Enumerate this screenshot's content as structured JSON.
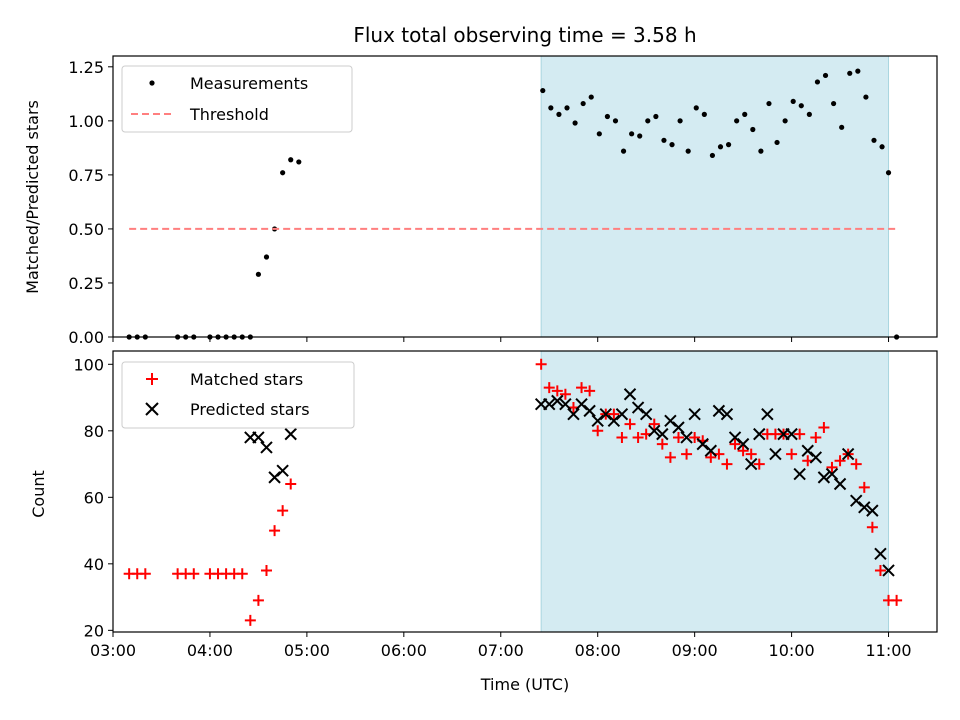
{
  "chart_data": [
    {
      "type": "scatter",
      "title": "Flux total observing time = 3.58 h",
      "xlabel": "",
      "ylabel": "Matched/Predicted stars",
      "xlim": [
        "03:00",
        "11:30"
      ],
      "ylim": [
        0,
        1.3
      ],
      "yticks": [
        "0.00",
        "0.25",
        "0.50",
        "0.75",
        "1.00",
        "1.25"
      ],
      "shaded_interval": [
        "07:25",
        "11:00"
      ],
      "shade_color": "#d4ebf2",
      "legend_position": "top-left",
      "series": [
        {
          "name": "Measurements",
          "marker": "dot",
          "color": "#000000",
          "points": [
            [
              "03:10",
              0
            ],
            [
              "03:15",
              0
            ],
            [
              "03:20",
              0
            ],
            [
              "03:40",
              0
            ],
            [
              "03:45",
              0
            ],
            [
              "03:50",
              0
            ],
            [
              "04:00",
              0
            ],
            [
              "04:05",
              0
            ],
            [
              "04:10",
              0
            ],
            [
              "04:15",
              0
            ],
            [
              "04:20",
              0
            ],
            [
              "04:25",
              0
            ],
            [
              "04:30",
              0.29
            ],
            [
              "04:35",
              0.37
            ],
            [
              "04:40",
              0.5
            ],
            [
              "04:45",
              0.76
            ],
            [
              "04:50",
              0.82
            ],
            [
              "04:55",
              0.81
            ],
            [
              "07:26",
              1.14
            ],
            [
              "07:31",
              1.06
            ],
            [
              "07:36",
              1.03
            ],
            [
              "07:41",
              1.06
            ],
            [
              "07:46",
              0.99
            ],
            [
              "07:51",
              1.08
            ],
            [
              "07:56",
              1.11
            ],
            [
              "08:01",
              0.94
            ],
            [
              "08:06",
              1.02
            ],
            [
              "08:11",
              1.0
            ],
            [
              "08:16",
              0.86
            ],
            [
              "08:21",
              0.94
            ],
            [
              "08:26",
              0.93
            ],
            [
              "08:31",
              1.0
            ],
            [
              "08:36",
              1.02
            ],
            [
              "08:41",
              0.91
            ],
            [
              "08:46",
              0.89
            ],
            [
              "08:51",
              1.0
            ],
            [
              "08:56",
              0.86
            ],
            [
              "09:01",
              1.06
            ],
            [
              "09:06",
              1.03
            ],
            [
              "09:11",
              0.84
            ],
            [
              "09:16",
              0.88
            ],
            [
              "09:21",
              0.89
            ],
            [
              "09:26",
              1.0
            ],
            [
              "09:31",
              1.03
            ],
            [
              "09:36",
              0.96
            ],
            [
              "09:41",
              0.86
            ],
            [
              "09:46",
              1.08
            ],
            [
              "09:51",
              0.9
            ],
            [
              "09:56",
              1.0
            ],
            [
              "10:01",
              1.09
            ],
            [
              "10:06",
              1.07
            ],
            [
              "10:11",
              1.03
            ],
            [
              "10:16",
              1.18
            ],
            [
              "10:21",
              1.21
            ],
            [
              "10:26",
              1.08
            ],
            [
              "10:31",
              0.97
            ],
            [
              "10:36",
              1.22
            ],
            [
              "10:41",
              1.23
            ],
            [
              "10:46",
              1.11
            ],
            [
              "10:51",
              0.91
            ],
            [
              "10:56",
              0.88
            ],
            [
              "11:00",
              0.76
            ],
            [
              "11:05",
              0
            ]
          ]
        },
        {
          "name": "Threshold",
          "marker": "dashed-line",
          "color": "#ff7f7f",
          "points": [
            [
              "03:10",
              0.5
            ],
            [
              "11:05",
              0.5
            ]
          ]
        }
      ]
    },
    {
      "type": "scatter",
      "title": "",
      "xlabel": "Time (UTC)",
      "ylabel": "Count",
      "xlim": [
        "03:00",
        "11:30"
      ],
      "ylim": [
        19.5,
        104
      ],
      "yticks": [
        "20",
        "40",
        "60",
        "80",
        "100"
      ],
      "xticks": [
        "03:00",
        "04:00",
        "05:00",
        "06:00",
        "07:00",
        "08:00",
        "09:00",
        "10:00",
        "11:00"
      ],
      "shaded_interval": [
        "07:25",
        "11:00"
      ],
      "shade_color": "#d4ebf2",
      "legend_position": "top-left",
      "series": [
        {
          "name": "Matched stars",
          "marker": "plus",
          "color": "#ff0000",
          "points": [
            [
              "03:10",
              37
            ],
            [
              "03:15",
              37
            ],
            [
              "03:20",
              37
            ],
            [
              "03:40",
              37
            ],
            [
              "03:45",
              37
            ],
            [
              "03:50",
              37
            ],
            [
              "04:00",
              37
            ],
            [
              "04:05",
              37
            ],
            [
              "04:10",
              37
            ],
            [
              "04:15",
              37
            ],
            [
              "04:20",
              37
            ],
            [
              "04:25",
              23
            ],
            [
              "04:30",
              29
            ],
            [
              "04:35",
              38
            ],
            [
              "04:40",
              50
            ],
            [
              "04:45",
              56
            ],
            [
              "04:50",
              64
            ],
            [
              "07:25",
              100
            ],
            [
              "07:30",
              93
            ],
            [
              "07:35",
              92
            ],
            [
              "07:40",
              91
            ],
            [
              "07:45",
              87
            ],
            [
              "07:50",
              93
            ],
            [
              "07:55",
              92
            ],
            [
              "08:00",
              80
            ],
            [
              "08:05",
              85
            ],
            [
              "08:10",
              85
            ],
            [
              "08:15",
              78
            ],
            [
              "08:20",
              82
            ],
            [
              "08:25",
              78
            ],
            [
              "08:30",
              79
            ],
            [
              "08:35",
              82
            ],
            [
              "08:40",
              76
            ],
            [
              "08:45",
              72
            ],
            [
              "08:50",
              78
            ],
            [
              "08:55",
              73
            ],
            [
              "09:00",
              78
            ],
            [
              "09:05",
              77
            ],
            [
              "09:10",
              72
            ],
            [
              "09:15",
              73
            ],
            [
              "09:20",
              70
            ],
            [
              "09:25",
              76
            ],
            [
              "09:30",
              74
            ],
            [
              "09:35",
              73
            ],
            [
              "09:40",
              70
            ],
            [
              "09:45",
              79
            ],
            [
              "09:50",
              79
            ],
            [
              "09:55",
              79
            ],
            [
              "10:00",
              73
            ],
            [
              "10:05",
              79
            ],
            [
              "10:10",
              71
            ],
            [
              "10:15",
              78
            ],
            [
              "10:20",
              81
            ],
            [
              "10:25",
              69
            ],
            [
              "10:30",
              71
            ],
            [
              "10:35",
              73
            ],
            [
              "10:40",
              70
            ],
            [
              "10:45",
              63
            ],
            [
              "10:50",
              51
            ],
            [
              "10:55",
              38
            ],
            [
              "11:00",
              29
            ],
            [
              "11:05",
              29
            ]
          ]
        },
        {
          "name": "Predicted stars",
          "marker": "x",
          "color": "#000000",
          "points": [
            [
              "04:25",
              78
            ],
            [
              "04:30",
              78
            ],
            [
              "04:35",
              75
            ],
            [
              "04:40",
              66
            ],
            [
              "04:45",
              68
            ],
            [
              "04:50",
              79
            ],
            [
              "07:25",
              88
            ],
            [
              "07:30",
              88
            ],
            [
              "07:35",
              89
            ],
            [
              "07:40",
              88
            ],
            [
              "07:45",
              85
            ],
            [
              "07:50",
              88
            ],
            [
              "07:55",
              86
            ],
            [
              "08:00",
              83
            ],
            [
              "08:05",
              85
            ],
            [
              "08:10",
              83
            ],
            [
              "08:15",
              85
            ],
            [
              "08:20",
              91
            ],
            [
              "08:25",
              87
            ],
            [
              "08:30",
              85
            ],
            [
              "08:35",
              80
            ],
            [
              "08:40",
              79
            ],
            [
              "08:45",
              83
            ],
            [
              "08:50",
              81
            ],
            [
              "08:55",
              78
            ],
            [
              "09:00",
              85
            ],
            [
              "09:05",
              76
            ],
            [
              "09:10",
              74
            ],
            [
              "09:15",
              86
            ],
            [
              "09:20",
              85
            ],
            [
              "09:25",
              78
            ],
            [
              "09:30",
              76
            ],
            [
              "09:35",
              70
            ],
            [
              "09:40",
              79
            ],
            [
              "09:45",
              85
            ],
            [
              "09:50",
              73
            ],
            [
              "09:55",
              79
            ],
            [
              "10:00",
              79
            ],
            [
              "10:05",
              67
            ],
            [
              "10:10",
              74
            ],
            [
              "10:15",
              72
            ],
            [
              "10:20",
              66
            ],
            [
              "10:25",
              67
            ],
            [
              "10:30",
              64
            ],
            [
              "10:35",
              73
            ],
            [
              "10:40",
              59
            ],
            [
              "10:45",
              57
            ],
            [
              "10:50",
              56
            ],
            [
              "10:55",
              43
            ],
            [
              "11:00",
              38
            ]
          ]
        }
      ]
    }
  ]
}
